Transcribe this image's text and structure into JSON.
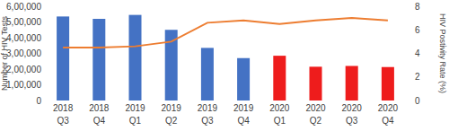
{
  "chart_data": {
    "type": "bar",
    "categories": [
      "2018 Q3",
      "2018 Q4",
      "2019 Q1",
      "2019 Q2",
      "2019 Q3",
      "2019 Q4",
      "2020 Q1",
      "2020 Q2",
      "2020 Q3",
      "2020 Q4"
    ],
    "y_label": "Number of HIV Tests",
    "y2_label": "HIV Postivity Rate (%)",
    "ylim": [
      0,
      600000
    ],
    "yticks": [
      0,
      {
        "value": 100000,
        "label": "1,00,000"
      },
      {
        "value": 200000,
        "label": "2,00,000"
      },
      {
        "value": 300000,
        "label": "3,00,000"
      },
      {
        "value": 400000,
        "label": "4,00,000"
      },
      {
        "value": 500000,
        "label": "5,00,000"
      },
      {
        "value": 600000,
        "label": "6,00,000"
      }
    ],
    "y2lim": [
      0,
      8
    ],
    "y2ticks": [
      0,
      2,
      4,
      6,
      8
    ],
    "grid": false,
    "series": [
      {
        "type": "bar",
        "colors": [
          "#4472c4",
          "#4472c4",
          "#4472c4",
          "#4472c4",
          "#4472c4",
          "#4472c4",
          "#ee1c1c",
          "#ee1c1c",
          "#ee1c1c",
          "#ee1c1c"
        ],
        "values": [
          535000,
          520000,
          545000,
          450000,
          335000,
          270000,
          285000,
          215000,
          220000,
          213000
        ]
      },
      {
        "type": "line",
        "axis": "y2",
        "color": "#ed7d31",
        "line_style": "solid",
        "values": [
          4.5,
          4.5,
          4.6,
          5.0,
          6.6,
          6.8,
          6.5,
          6.8,
          7.0,
          6.8
        ]
      }
    ]
  }
}
